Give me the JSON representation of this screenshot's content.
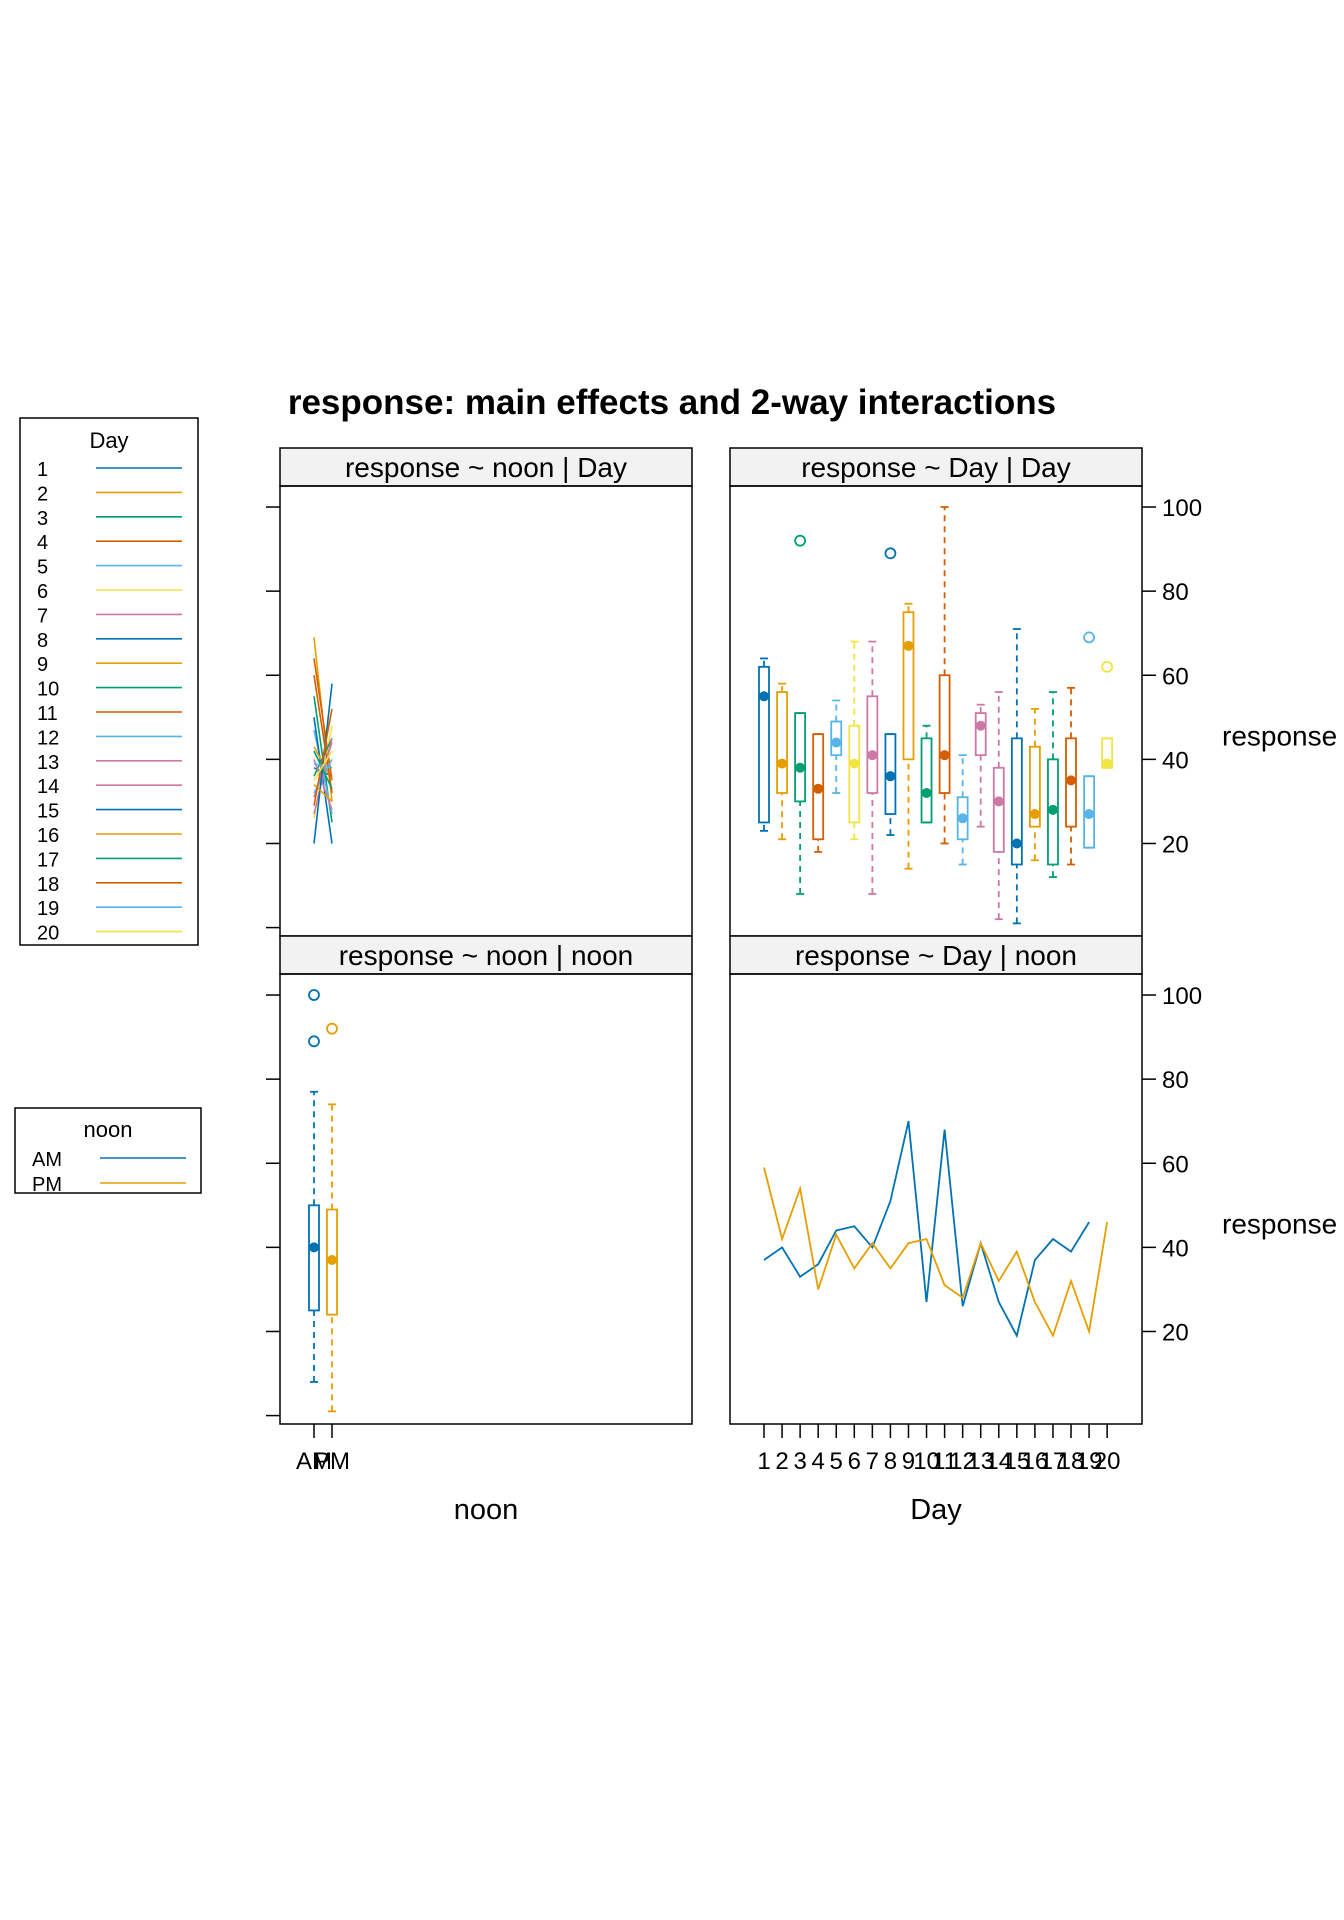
{
  "chart_data": {
    "type": "multi-panel",
    "title": "response: main effects and 2-way interactions",
    "colors": [
      "#0072B2",
      "#E69F00",
      "#009E73",
      "#D55E00",
      "#56B4E9",
      "#F0E442",
      "#CC79A7",
      "#0072B2",
      "#E69F00",
      "#009E73",
      "#D55E00",
      "#56B4E9",
      "#CC79A7",
      "#CC79A7",
      "#0072B2",
      "#E69F00",
      "#009E73",
      "#D55E00",
      "#56B4E9",
      "#F0E442"
    ],
    "legend_day": {
      "title": "Day",
      "labels": [
        "1",
        "2",
        "3",
        "4",
        "5",
        "6",
        "7",
        "8",
        "9",
        "10",
        "11",
        "12",
        "13",
        "14",
        "15",
        "16",
        "17",
        "18",
        "19",
        "20"
      ]
    },
    "legend_noon": {
      "title": "noon",
      "labels": [
        "AM",
        "PM"
      ],
      "colors": [
        "#0072B2",
        "#E69F00"
      ]
    },
    "y_axis": {
      "label": "response",
      "ticks": [
        20,
        40,
        60,
        80,
        100
      ],
      "ylim": [
        -2,
        105
      ]
    },
    "x_axis_noon": {
      "label": "noon",
      "categories": [
        "AM",
        "PM"
      ]
    },
    "x_axis_day": {
      "label": "Day",
      "categories": [
        "1",
        "2",
        "3",
        "4",
        "5",
        "6",
        "7",
        "8",
        "9",
        "10",
        "11",
        "12",
        "13",
        "14",
        "15",
        "16",
        "17",
        "18",
        "19",
        "20"
      ]
    },
    "panels": [
      {
        "strip": "response ~ noon | Day",
        "type": "line",
        "x": [
          "AM",
          "PM"
        ],
        "series": [
          {
            "values": [
              38,
              36
            ]
          },
          {
            "values": [
              69,
              30
            ]
          },
          {
            "values": [
              55,
              25
            ]
          },
          {
            "values": [
              64,
              35
            ]
          },
          {
            "values": [
              47,
              27
            ]
          },
          {
            "values": [
              26,
              48
            ]
          },
          {
            "values": [
              31,
              44
            ]
          },
          {
            "values": [
              50,
              20
            ]
          },
          {
            "values": [
              43,
              35
            ]
          },
          {
            "values": [
              36,
              45
            ]
          },
          {
            "values": [
              60,
              32
            ]
          },
          {
            "values": [
              32,
              40
            ]
          },
          {
            "values": [
              27,
              45
            ]
          },
          {
            "values": [
              40,
              28
            ]
          },
          {
            "values": [
              20,
              58
            ]
          },
          {
            "values": [
              34,
              30
            ]
          },
          {
            "values": [
              42,
              33
            ]
          },
          {
            "values": [
              29,
              52
            ]
          },
          {
            "values": [
              39,
              38
            ]
          },
          {
            "values": [
              35,
              42
            ]
          }
        ]
      },
      {
        "strip": "response ~ Day | Day",
        "type": "boxplot",
        "categories": [
          "1",
          "2",
          "3",
          "4",
          "5",
          "6",
          "7",
          "8",
          "9",
          "10",
          "11",
          "12",
          "13",
          "14",
          "15",
          "16",
          "17",
          "18",
          "19",
          "20"
        ],
        "boxes": [
          {
            "low": 23,
            "q1": 25,
            "median": 55,
            "q3": 62,
            "high": 64,
            "outliers": []
          },
          {
            "low": 21,
            "q1": 32,
            "median": 39,
            "q3": 56,
            "high": 58,
            "outliers": []
          },
          {
            "low": 8,
            "q1": 30,
            "median": 38,
            "q3": 51,
            "high": 51,
            "outliers": [
              92
            ]
          },
          {
            "low": 18,
            "q1": 21,
            "median": 33,
            "q3": 46,
            "high": 46,
            "outliers": []
          },
          {
            "low": 32,
            "q1": 41,
            "median": 44,
            "q3": 49,
            "high": 54,
            "outliers": []
          },
          {
            "low": 21,
            "q1": 25,
            "median": 39,
            "q3": 48,
            "high": 68,
            "outliers": []
          },
          {
            "low": 8,
            "q1": 32,
            "median": 41,
            "q3": 55,
            "high": 68,
            "outliers": []
          },
          {
            "low": 22,
            "q1": 27,
            "median": 36,
            "q3": 46,
            "high": 46,
            "outliers": [
              89
            ]
          },
          {
            "low": 14,
            "q1": 40,
            "median": 67,
            "q3": 75,
            "high": 77,
            "outliers": []
          },
          {
            "low": 25,
            "q1": 25,
            "median": 32,
            "q3": 45,
            "high": 48,
            "outliers": []
          },
          {
            "low": 20,
            "q1": 32,
            "median": 41,
            "q3": 60,
            "high": 100,
            "outliers": []
          },
          {
            "low": 15,
            "q1": 21,
            "median": 26,
            "q3": 31,
            "high": 41,
            "outliers": []
          },
          {
            "low": 24,
            "q1": 41,
            "median": 48,
            "q3": 51,
            "high": 53,
            "outliers": []
          },
          {
            "low": 2,
            "q1": 18,
            "median": 30,
            "q3": 38,
            "high": 56,
            "outliers": []
          },
          {
            "low": 1,
            "q1": 15,
            "median": 20,
            "q3": 45,
            "high": 71,
            "outliers": []
          },
          {
            "low": 16,
            "q1": 24,
            "median": 27,
            "q3": 43,
            "high": 52,
            "outliers": []
          },
          {
            "low": 12,
            "q1": 15,
            "median": 28,
            "q3": 40,
            "high": 56,
            "outliers": []
          },
          {
            "low": 15,
            "q1": 24,
            "median": 35,
            "q3": 45,
            "high": 57,
            "outliers": []
          },
          {
            "low": 19,
            "q1": 19,
            "median": 27,
            "q3": 36,
            "high": 36,
            "outliers": [
              69
            ]
          },
          {
            "low": 38,
            "q1": 38,
            "median": 39,
            "q3": 45,
            "high": 45,
            "outliers": [
              62
            ]
          }
        ]
      },
      {
        "strip": "response ~ noon | noon",
        "type": "boxplot",
        "categories": [
          "AM",
          "PM"
        ],
        "boxes": [
          {
            "low": 8,
            "q1": 25,
            "median": 40,
            "q3": 50,
            "high": 77,
            "outliers": [
              89,
              100
            ]
          },
          {
            "low": 1,
            "q1": 24,
            "median": 37,
            "q3": 49,
            "high": 74,
            "outliers": [
              92
            ]
          }
        ]
      },
      {
        "strip": "response ~ Day | noon",
        "type": "line",
        "categories": [
          "1",
          "2",
          "3",
          "4",
          "5",
          "6",
          "7",
          "8",
          "9",
          "10",
          "11",
          "12",
          "13",
          "14",
          "15",
          "16",
          "17",
          "18",
          "19",
          "20"
        ],
        "series": [
          {
            "name": "AM",
            "values": [
              37,
              40,
              33,
              36,
              44,
              45,
              40,
              51,
              70,
              27,
              68,
              26,
              41,
              27,
              19,
              37,
              42,
              39,
              46,
              null
            ]
          },
          {
            "name": "PM",
            "values": [
              59,
              42,
              54,
              30,
              43,
              35,
              41,
              35,
              41,
              42,
              31,
              28,
              41,
              32,
              39,
              27,
              19,
              32,
              20,
              46
            ]
          }
        ]
      }
    ]
  }
}
